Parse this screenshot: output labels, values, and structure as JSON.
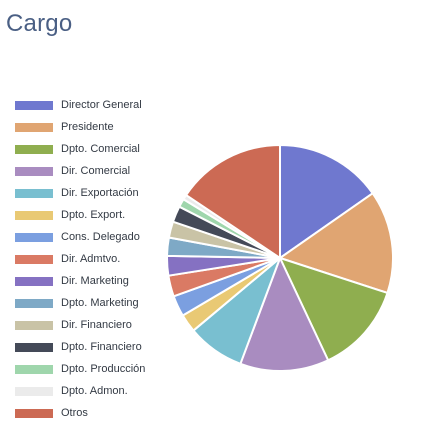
{
  "title": "Cargo",
  "chart_data": {
    "type": "pie",
    "legend_position": "left",
    "start_angle_deg": 0,
    "direction": "clockwise",
    "slices": [
      {
        "label": "Director General",
        "value": 15.3,
        "color": "#6f78cf"
      },
      {
        "label": "Presidente",
        "value": 14.7,
        "color": "#e0a572"
      },
      {
        "label": "Dpto. Comercial",
        "value": 13.0,
        "color": "#8fae4f"
      },
      {
        "label": "Dir. Comercial",
        "value": 12.7,
        "color": "#a98cc0"
      },
      {
        "label": "Dir. Exportación",
        "value": 8.2,
        "color": "#79bfd0"
      },
      {
        "label": "Dpto. Export.",
        "value": 2.6,
        "color": "#e9c974"
      },
      {
        "label": "Cons. Delegado",
        "value": 3.0,
        "color": "#7b9fe0"
      },
      {
        "label": "Dir. Admtvo.",
        "value": 3.0,
        "color": "#da7a64"
      },
      {
        "label": "Dir. Marketing",
        "value": 2.8,
        "color": "#8571c2"
      },
      {
        "label": "Dpto. Marketing",
        "value": 2.6,
        "color": "#7ea9c6"
      },
      {
        "label": "Dir. Financiero",
        "value": 2.3,
        "color": "#c9c3a6"
      },
      {
        "label": "Dpto. Financiero",
        "value": 2.3,
        "color": "#444a58"
      },
      {
        "label": "Dpto. Producción",
        "value": 1.2,
        "color": "#9fd6ac"
      },
      {
        "label": "Dpto. Admon.",
        "value": 0.7,
        "color": "#ebebeb"
      },
      {
        "label": "Otros",
        "value": 15.6,
        "color": "#cc6a54"
      }
    ]
  }
}
